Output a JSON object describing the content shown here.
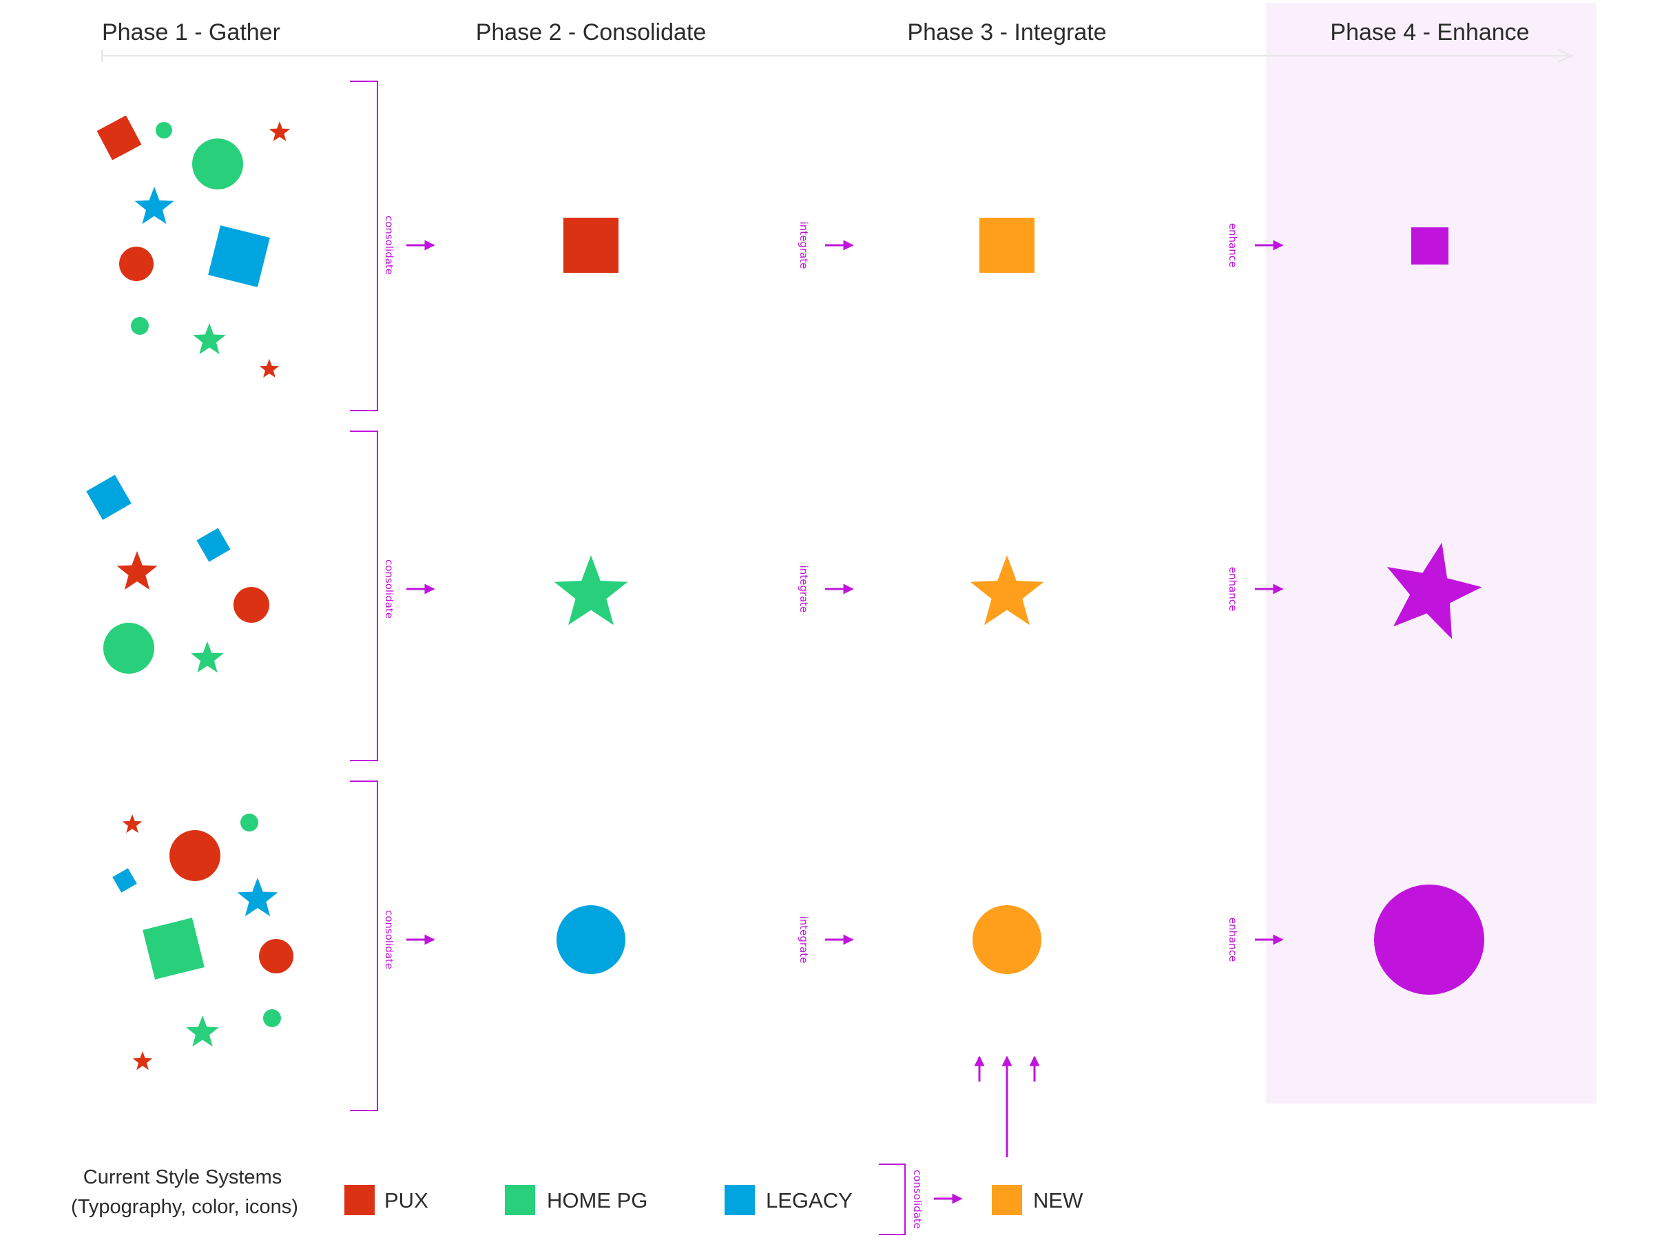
{
  "phases": [
    {
      "label": "Phase 1 - Gather"
    },
    {
      "label": "Phase 2 - Consolidate"
    },
    {
      "label": "Phase 3 - Integrate"
    },
    {
      "label": "Phase 4 - Enhance"
    }
  ],
  "step_labels": {
    "consolidate": "consolidate",
    "integrate": "integrate",
    "enhance": "enhance"
  },
  "colors": {
    "pux": "#dc3214",
    "home_pg": "#28d07c",
    "legacy": "#00a5e0",
    "new": "#ff9f1c",
    "enhanced": "#c014dc",
    "accent": "#c014dc",
    "phase4_bg": "#faf0fc",
    "timeline": "#e8e8e8"
  },
  "rows": [
    {
      "shape": "square",
      "consolidated_color": "pux"
    },
    {
      "shape": "star",
      "consolidated_color": "home_pg"
    },
    {
      "shape": "circle",
      "consolidated_color": "legacy"
    }
  ],
  "legend": {
    "title_line1": "Current Style Systems",
    "title_line2": "(Typography, color, icons)",
    "items": [
      {
        "label": "PUX",
        "color": "pux"
      },
      {
        "label": "HOME PG",
        "color": "home_pg"
      },
      {
        "label": "LEGACY",
        "color": "legacy"
      },
      {
        "label": "NEW",
        "color": "new"
      }
    ]
  }
}
